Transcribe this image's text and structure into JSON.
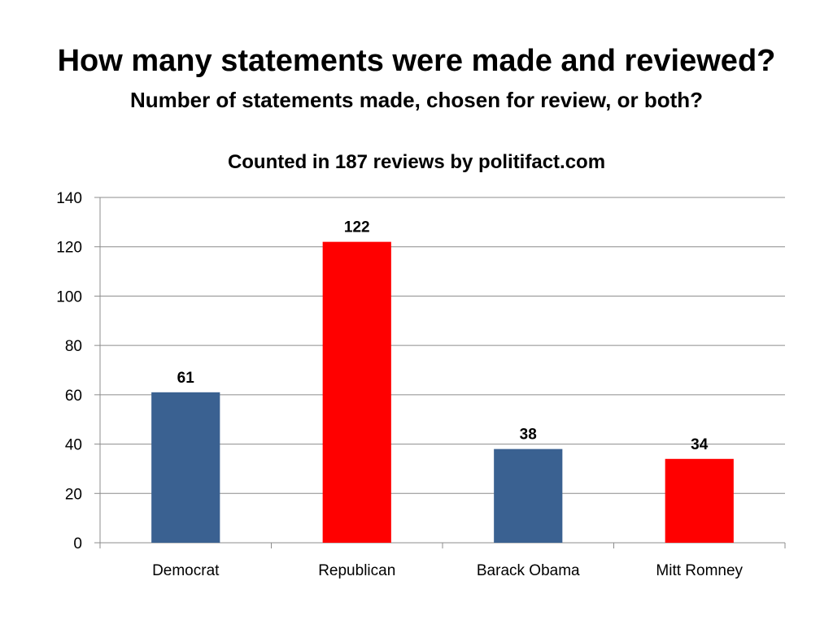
{
  "header": {
    "title": "How many statements were made and reviewed?",
    "subtitle": "Number of statements made, chosen for review, or both?"
  },
  "chart_data": {
    "type": "bar",
    "title": "Counted in 187 reviews by politifact.com",
    "categories": [
      "Democrat",
      "Republican",
      "Barack Obama",
      "Mitt Romney"
    ],
    "values": [
      61,
      122,
      38,
      34
    ],
    "data_labels": [
      "61",
      "122",
      "38",
      "34"
    ],
    "colors": [
      "#3a6191",
      "#ff0000",
      "#3a6191",
      "#ff0000"
    ],
    "ylim": [
      0,
      140
    ],
    "yticks": [
      0,
      20,
      40,
      60,
      80,
      100,
      120,
      140
    ],
    "grid": true,
    "legend": "none",
    "xlabel": "",
    "ylabel": ""
  }
}
